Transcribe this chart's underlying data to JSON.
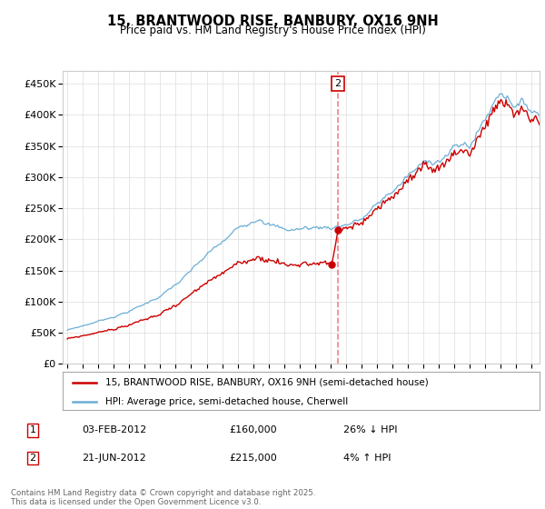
{
  "title": "15, BRANTWOOD RISE, BANBURY, OX16 9NH",
  "subtitle": "Price paid vs. HM Land Registry's House Price Index (HPI)",
  "hpi_color": "#6baed6",
  "price_color": "#cc0000",
  "vline_color": "#f08080",
  "ylim": [
    0,
    470000
  ],
  "yticks": [
    0,
    50000,
    100000,
    150000,
    200000,
    250000,
    300000,
    350000,
    400000,
    450000
  ],
  "xlim_start": 1994.7,
  "xlim_end": 2025.5,
  "t1_x": 2012.08,
  "t2_x": 2012.47,
  "t1_price": 160000,
  "t2_price": 215000,
  "transaction1": {
    "date_label": "03-FEB-2012",
    "price": 160000,
    "pct": "26%",
    "direction": "↓",
    "marker_num": "1"
  },
  "transaction2": {
    "date_label": "21-JUN-2012",
    "price": 215000,
    "pct": "4%",
    "direction": "↑",
    "marker_num": "2"
  },
  "legend_line1": "15, BRANTWOOD RISE, BANBURY, OX16 9NH (semi-detached house)",
  "legend_line2": "HPI: Average price, semi-detached house, Cherwell",
  "footer": "Contains HM Land Registry data © Crown copyright and database right 2025.\nThis data is licensed under the Open Government Licence v3.0.",
  "background_color": "#ffffff",
  "grid_color": "#dddddd"
}
